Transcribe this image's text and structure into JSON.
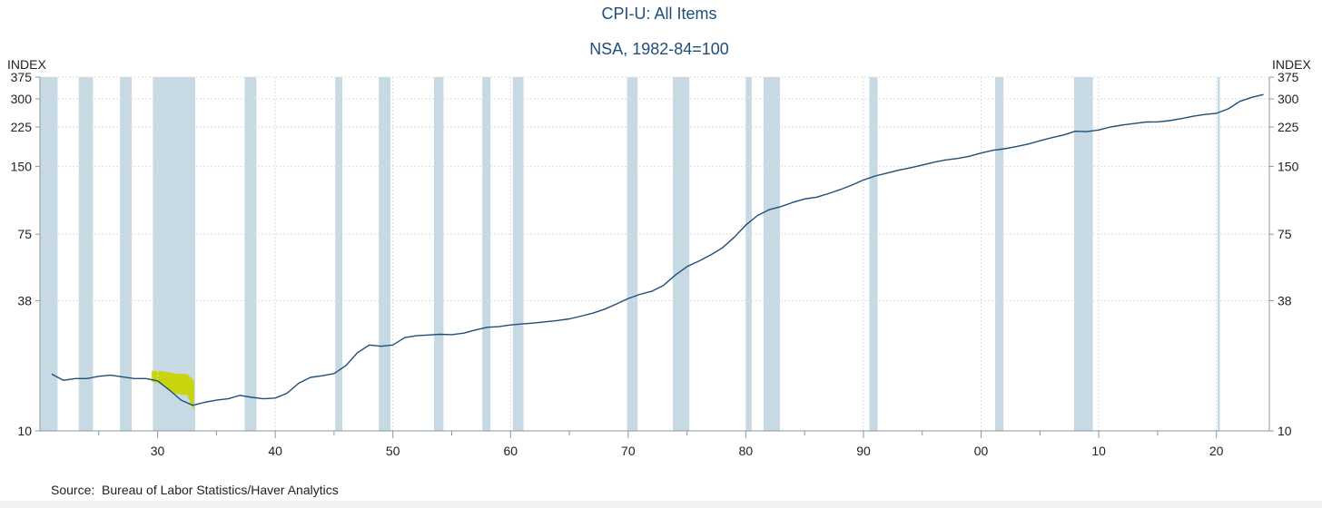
{
  "source_text": "Source:  Bureau of Labor Statistics/Haver Analytics",
  "colors": {
    "line": "#1f4e79",
    "recession": "#c7d9e3",
    "highlight": "#c8d400",
    "grid": "#dddddd",
    "title": "#1f4e79"
  },
  "chart_data": {
    "type": "line",
    "title": "CPI-U: All Items",
    "subtitle": "NSA, 1982-84=100",
    "ylabel_left": "INDEX",
    "ylabel_right": "INDEX",
    "y_scale": "log",
    "ylim": [
      10,
      375
    ],
    "y_ticks": [
      10,
      38,
      75,
      150,
      225,
      300,
      375
    ],
    "xlim": [
      1920,
      2024.5
    ],
    "x_tick_years": [
      1930,
      1940,
      1950,
      1960,
      1970,
      1980,
      1990,
      2000,
      2010,
      2020
    ],
    "x_tick_labels": [
      "30",
      "40",
      "50",
      "60",
      "70",
      "80",
      "90",
      "00",
      "10",
      "20"
    ],
    "x_minor_ticks": [
      1925,
      1935,
      1945,
      1955,
      1965,
      1975,
      1985,
      1995,
      2005,
      2015
    ],
    "grid": true,
    "recessions": [
      [
        1920.0,
        1921.5
      ],
      [
        1923.3,
        1924.5
      ],
      [
        1926.8,
        1927.8
      ],
      [
        1929.6,
        1933.2
      ],
      [
        1937.4,
        1938.4
      ],
      [
        1945.1,
        1945.7
      ],
      [
        1948.8,
        1949.8
      ],
      [
        1953.5,
        1954.3
      ],
      [
        1957.6,
        1958.3
      ],
      [
        1960.2,
        1961.1
      ],
      [
        1969.9,
        1970.8
      ],
      [
        1973.8,
        1975.2
      ],
      [
        1980.0,
        1980.5
      ],
      [
        1981.5,
        1982.9
      ],
      [
        1990.5,
        1991.2
      ],
      [
        2001.2,
        2001.9
      ],
      [
        2007.9,
        2009.5
      ],
      [
        2020.1,
        2020.3
      ]
    ],
    "highlight": {
      "x_start": 1929.5,
      "x_end": 1933.2,
      "upper": [
        18.5,
        18.4,
        18.0,
        17.9,
        16.7
      ],
      "lower": [
        16.6,
        16.0,
        14.6,
        14.4,
        12.3
      ],
      "x": [
        1929.5,
        1930.5,
        1931.5,
        1932.5,
        1933.1
      ]
    },
    "series": [
      {
        "x": [
          1921,
          1922,
          1923,
          1924,
          1925,
          1926,
          1927,
          1928,
          1929,
          1930,
          1931,
          1932,
          1933,
          1934,
          1935,
          1936,
          1937,
          1938,
          1939,
          1940,
          1941,
          1942,
          1943,
          1944,
          1945,
          1946,
          1947,
          1948,
          1949,
          1950,
          1951,
          1952,
          1953,
          1954,
          1955,
          1956,
          1957,
          1958,
          1959,
          1960,
          1961,
          1962,
          1963,
          1964,
          1965,
          1966,
          1967,
          1968,
          1969,
          1970,
          1971,
          1972,
          1973,
          1974,
          1975,
          1976,
          1977,
          1978,
          1979,
          1980,
          1981,
          1982,
          1983,
          1984,
          1985,
          1986,
          1987,
          1988,
          1989,
          1990,
          1991,
          1992,
          1993,
          1994,
          1995,
          1996,
          1997,
          1998,
          1999,
          2000,
          2001,
          2002,
          2003,
          2004,
          2005,
          2006,
          2007,
          2008,
          2009,
          2010,
          2011,
          2012,
          2013,
          2014,
          2015,
          2016,
          2017,
          2018,
          2019,
          2020,
          2021,
          2022,
          2023,
          2024
        ],
        "values": [
          17.9,
          16.8,
          17.1,
          17.1,
          17.5,
          17.7,
          17.4,
          17.1,
          17.1,
          16.7,
          15.2,
          13.7,
          13.0,
          13.4,
          13.7,
          13.9,
          14.4,
          14.1,
          13.9,
          14.0,
          14.7,
          16.3,
          17.3,
          17.6,
          18.0,
          19.5,
          22.3,
          24.1,
          23.8,
          24.1,
          26.0,
          26.5,
          26.7,
          26.9,
          26.8,
          27.2,
          28.1,
          28.9,
          29.1,
          29.6,
          29.9,
          30.2,
          30.6,
          31.0,
          31.5,
          32.4,
          33.4,
          34.8,
          36.7,
          38.8,
          40.5,
          41.8,
          44.4,
          49.3,
          53.8,
          56.9,
          60.6,
          65.2,
          72.6,
          82.4,
          90.9,
          96.5,
          99.6,
          103.9,
          107.6,
          109.6,
          113.6,
          118.3,
          124.0,
          130.7,
          136.2,
          140.3,
          144.5,
          148.2,
          152.4,
          156.9,
          160.5,
          163.0,
          166.6,
          172.2,
          177.1,
          179.9,
          184.0,
          188.9,
          195.3,
          201.6,
          207.3,
          215.3,
          214.5,
          218.1,
          224.9,
          229.6,
          233.0,
          236.7,
          237.0,
          240.0,
          245.1,
          251.1,
          255.7,
          258.8,
          271.0,
          292.7,
          304.7,
          313.7
        ]
      }
    ]
  }
}
